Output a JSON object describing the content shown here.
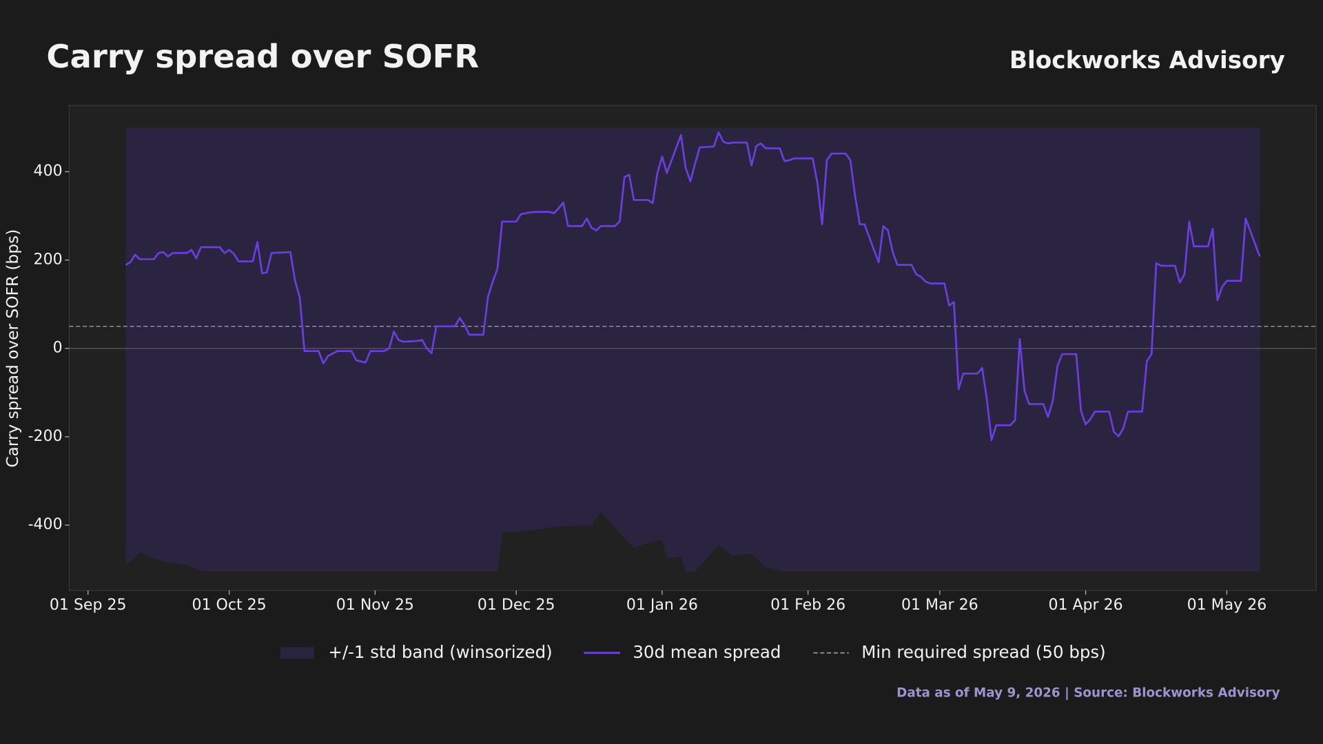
{
  "chart_data": {
    "type": "line",
    "title": "Carry spread over SOFR",
    "brand": "Blockworks Advisory",
    "ylabel": "Carry spread over SOFR (bps)",
    "footnote": "Data as of May 9, 2026 | Source: Blockworks Advisory",
    "x": [
      "2025-09-09",
      "2025-09-10",
      "2025-09-11",
      "2025-09-12",
      "2025-09-15",
      "2025-09-16",
      "2025-09-17",
      "2025-09-18",
      "2025-09-19",
      "2025-09-22",
      "2025-09-23",
      "2025-09-24",
      "2025-09-25",
      "2025-09-29",
      "2025-09-30",
      "2025-10-01",
      "2025-10-02",
      "2025-10-03",
      "2025-10-06",
      "2025-10-07",
      "2025-10-08",
      "2025-10-09",
      "2025-10-10",
      "2025-10-14",
      "2025-10-15",
      "2025-10-16",
      "2025-10-17",
      "2025-10-20",
      "2025-10-21",
      "2025-10-22",
      "2025-10-24",
      "2025-10-27",
      "2025-10-28",
      "2025-10-30",
      "2025-10-31",
      "2025-11-03",
      "2025-11-04",
      "2025-11-05",
      "2025-11-06",
      "2025-11-07",
      "2025-11-10",
      "2025-11-11",
      "2025-11-12",
      "2025-11-13",
      "2025-11-14",
      "2025-11-17",
      "2025-11-18",
      "2025-11-19",
      "2025-11-20",
      "2025-11-21",
      "2025-11-24",
      "2025-11-25",
      "2025-11-26",
      "2025-11-27",
      "2025-11-28",
      "2025-12-01",
      "2025-12-02",
      "2025-12-04",
      "2025-12-05",
      "2025-12-08",
      "2025-12-09",
      "2025-12-10",
      "2025-12-11",
      "2025-12-12",
      "2025-12-15",
      "2025-12-16",
      "2025-12-17",
      "2025-12-18",
      "2025-12-19",
      "2025-12-22",
      "2025-12-23",
      "2025-12-24",
      "2025-12-25",
      "2025-12-26",
      "2025-12-29",
      "2025-12-30",
      "2025-12-31",
      "2026-01-01",
      "2026-01-02",
      "2026-01-05",
      "2026-01-06",
      "2026-01-07",
      "2026-01-08",
      "2026-01-09",
      "2026-01-12",
      "2026-01-13",
      "2026-01-14",
      "2026-01-15",
      "2026-01-16",
      "2026-01-19",
      "2026-01-20",
      "2026-01-21",
      "2026-01-22",
      "2026-01-23",
      "2026-01-26",
      "2026-01-27",
      "2026-01-28",
      "2026-01-29",
      "2026-01-30",
      "2026-02-02",
      "2026-02-03",
      "2026-02-04",
      "2026-02-05",
      "2026-02-06",
      "2026-02-09",
      "2026-02-10",
      "2026-02-11",
      "2026-02-12",
      "2026-02-13",
      "2026-02-16",
      "2026-02-17",
      "2026-02-18",
      "2026-02-19",
      "2026-02-20",
      "2026-02-23",
      "2026-02-24",
      "2026-02-25",
      "2026-02-26",
      "2026-02-27",
      "2026-03-02",
      "2026-03-03",
      "2026-03-04",
      "2026-03-05",
      "2026-03-06",
      "2026-03-09",
      "2026-03-10",
      "2026-03-11",
      "2026-03-12",
      "2026-03-13",
      "2026-03-16",
      "2026-03-17",
      "2026-03-18",
      "2026-03-19",
      "2026-03-20",
      "2026-03-23",
      "2026-03-24",
      "2026-03-25",
      "2026-03-26",
      "2026-03-27",
      "2026-03-30",
      "2026-03-31",
      "2026-04-01",
      "2026-04-02",
      "2026-04-03",
      "2026-04-06",
      "2026-04-07",
      "2026-04-08",
      "2026-04-09",
      "2026-04-10",
      "2026-04-13",
      "2026-04-14",
      "2026-04-15",
      "2026-04-16",
      "2026-04-17",
      "2026-04-20",
      "2026-04-21",
      "2026-04-22",
      "2026-04-23",
      "2026-04-24",
      "2026-04-27",
      "2026-04-28",
      "2026-04-29",
      "2026-04-30",
      "2026-05-01",
      "2026-05-04",
      "2026-05-05",
      "2026-05-08"
    ],
    "series": [
      {
        "name": "30d mean spread",
        "color": "#6a3fe0",
        "values": [
          189,
          195,
          212,
          202,
          202,
          216,
          218,
          208,
          216,
          216,
          223,
          204,
          229,
          229,
          216,
          223,
          214,
          197,
          197,
          241,
          170,
          172,
          216,
          218,
          153,
          115,
          -6,
          -6,
          -34,
          -17,
          -6,
          -6,
          -27,
          -32,
          -6,
          -6,
          0,
          38,
          19,
          15,
          17,
          19,
          0,
          -11,
          50,
          50,
          50,
          69,
          53,
          31,
          31,
          117,
          151,
          180,
          287,
          287,
          304,
          308,
          309,
          309,
          306,
          317,
          330,
          277,
          277,
          294,
          273,
          267,
          277,
          277,
          288,
          388,
          393,
          336,
          336,
          329,
          397,
          434,
          397,
          483,
          409,
          378,
          418,
          455,
          457,
          489,
          468,
          464,
          466,
          466,
          414,
          458,
          464,
          453,
          453,
          424,
          426,
          430,
          430,
          430,
          374,
          281,
          426,
          441,
          441,
          426,
          346,
          281,
          281,
          195,
          277,
          267,
          218,
          189,
          189,
          168,
          162,
          151,
          147,
          147,
          97,
          105,
          -92,
          -57,
          -57,
          -44,
          -115,
          -208,
          -174,
          -174,
          -162,
          21,
          -96,
          -126,
          -126,
          -155,
          -120,
          -40,
          -13,
          -13,
          -141,
          -172,
          -160,
          -143,
          -143,
          -189,
          -199,
          -181,
          -143,
          -143,
          -29,
          -13,
          193,
          187,
          187,
          149,
          168,
          287,
          231,
          231,
          271,
          109,
          139,
          153,
          153,
          294,
          208
        ]
      }
    ],
    "band": {
      "name": "+/-1 std band (winsorized)",
      "color": "#2a2440",
      "x": [
        "2025-09-09",
        "2025-09-10",
        "2025-09-12",
        "2025-09-15",
        "2025-09-18",
        "2025-09-22",
        "2025-09-25",
        "2025-09-29",
        "2025-11-27",
        "2025-11-28",
        "2025-12-05",
        "2025-12-10",
        "2025-12-17",
        "2025-12-19",
        "2025-12-23",
        "2025-12-26",
        "2025-12-29",
        "2026-01-01",
        "2026-01-02",
        "2026-01-05",
        "2026-01-06",
        "2026-01-08",
        "2026-01-13",
        "2026-01-16",
        "2026-01-20",
        "2026-01-23",
        "2026-01-27",
        "2026-05-08"
      ],
      "upper": [
        500,
        500,
        500,
        500,
        500,
        500,
        500,
        500,
        500,
        500,
        500,
        500,
        500,
        500,
        500,
        500,
        500,
        500,
        500,
        500,
        500,
        500,
        500,
        500,
        500,
        500,
        500,
        500
      ],
      "lower": [
        -487,
        -483,
        -462,
        -475,
        -485,
        -490,
        -504,
        -505,
        -505,
        -418,
        -411,
        -403,
        -400,
        -370,
        -418,
        -452,
        -440,
        -433,
        -475,
        -471,
        -505,
        -505,
        -445,
        -470,
        -465,
        -495,
        -505,
        -505
      ]
    },
    "reference_line": {
      "name": "Min required spread (50 bps)",
      "value": 50,
      "color": "#9a9a9a",
      "style": "dashed"
    },
    "zero_line": true,
    "xlim": [
      "2025-08-28",
      "2026-05-20"
    ],
    "xticks": [
      {
        "value": "2025-09-01",
        "label": "01 Sep 25"
      },
      {
        "value": "2025-10-01",
        "label": "01 Oct 25"
      },
      {
        "value": "2025-11-01",
        "label": "01 Nov 25"
      },
      {
        "value": "2025-12-01",
        "label": "01 Dec 25"
      },
      {
        "value": "2026-01-01",
        "label": "01 Jan 26"
      },
      {
        "value": "2026-02-01",
        "label": "01 Feb 26"
      },
      {
        "value": "2026-03-01",
        "label": "01 Mar 26"
      },
      {
        "value": "2026-04-01",
        "label": "01 Apr 26"
      },
      {
        "value": "2026-05-01",
        "label": "01 May 26"
      }
    ],
    "ylim": [
      -548,
      550
    ],
    "yticks": [
      -400,
      -200,
      0,
      200,
      400
    ]
  }
}
